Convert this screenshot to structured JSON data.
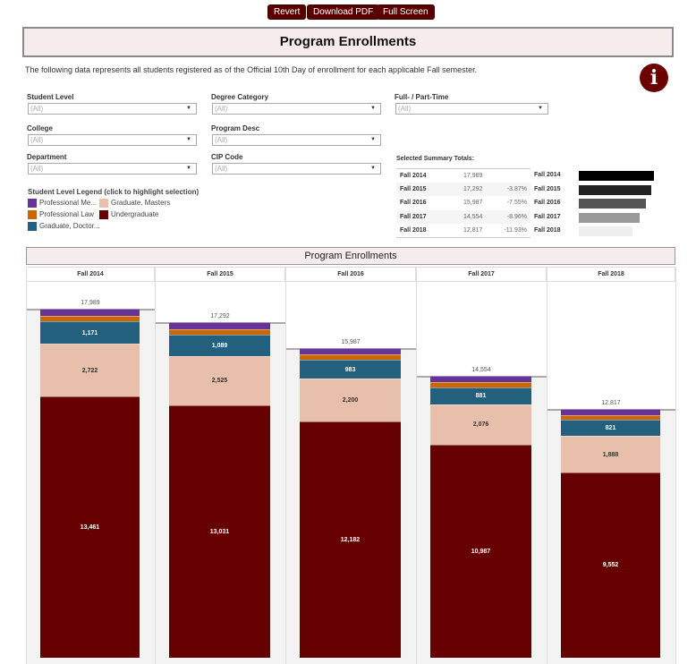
{
  "toolbar": {
    "revert": "Revert",
    "download": "Download PDF",
    "fullscreen": "Full Screen"
  },
  "title": "Program Enrollments",
  "description": "The following data represents all students registered as of the Official 10th Day of enrollment for each applicable Fall semester.",
  "info_icon": "i",
  "filters": [
    {
      "label": "Student Level",
      "value": "(All)"
    },
    {
      "label": "Degree Category",
      "value": "(All)"
    },
    {
      "label": "Full- / Part-Time",
      "value": "(All)"
    },
    {
      "label": "College",
      "value": "(All)"
    },
    {
      "label": "Program Desc",
      "value": "(All)"
    },
    {
      "label": "Department",
      "value": "(All)"
    },
    {
      "label": "CIP Code",
      "value": "(All)"
    }
  ],
  "legend": {
    "title": "Student Level Legend (click to highlight selection)",
    "items": [
      {
        "label": "Professional Me...",
        "color": "#663399"
      },
      {
        "label": "Graduate, Masters",
        "color": "#e8bfaa"
      },
      {
        "label": "Professional Law",
        "color": "#cc6600"
      },
      {
        "label": "Undergraduate",
        "color": "#660000"
      },
      {
        "label": "Graduate, Doctor...",
        "color": "#23607e"
      }
    ]
  },
  "summary": {
    "title": "Selected Summary Totals:",
    "rows": [
      {
        "term": "Fall 2014",
        "total": "17,989",
        "change": "",
        "bar_fraction": 1.0,
        "color": "#000000"
      },
      {
        "term": "Fall 2015",
        "total": "17,292",
        "change": "-3.87%",
        "bar_fraction": 0.961,
        "color": "#222222"
      },
      {
        "term": "Fall 2016",
        "total": "15,987",
        "change": "-7.55%",
        "bar_fraction": 0.889,
        "color": "#555555"
      },
      {
        "term": "Fall 2017",
        "total": "14,554",
        "change": "-8.96%",
        "bar_fraction": 0.809,
        "color": "#999999"
      },
      {
        "term": "Fall 2018",
        "total": "12,817",
        "change": "-11.93%",
        "bar_fraction": 0.713,
        "color": "#eeeeee"
      }
    ]
  },
  "chart_data": {
    "type": "bar",
    "stacked": true,
    "title": "Program Enrollments",
    "categories": [
      "Fall 2014",
      "Fall 2015",
      "Fall 2016",
      "Fall 2017",
      "Fall 2018"
    ],
    "totals": [
      17989,
      17292,
      15987,
      14554,
      12817
    ],
    "total_labels": [
      "17,989",
      "17,292",
      "15,987",
      "14,554",
      "12,817"
    ],
    "series": [
      {
        "name": "Undergraduate",
        "color": "#660000",
        "values": [
          13461,
          13031,
          12182,
          10987,
          9552
        ],
        "labels": [
          "13,461",
          "13,031",
          "12,182",
          "10,987",
          "9,552"
        ]
      },
      {
        "name": "Graduate, Masters",
        "color": "#e8bfaa",
        "values": [
          2722,
          2525,
          2200,
          2076,
          1888
        ],
        "labels": [
          "2,722",
          "2,525",
          "2,200",
          "2,076",
          "1,888"
        ]
      },
      {
        "name": "Graduate, Doctoral",
        "color": "#23607e",
        "values": [
          1171,
          1089,
          983,
          881,
          821
        ],
        "labels": [
          "1,171",
          "1,089",
          "983",
          "881",
          "821"
        ]
      },
      {
        "name": "Professional Law",
        "color": "#cc6600",
        "values": [
          270,
          290,
          280,
          275,
          250
        ],
        "labels": [
          "",
          "",
          "",
          "",
          ""
        ]
      },
      {
        "name": "Professional Medicine",
        "color": "#663399",
        "values": [
          365,
          357,
          342,
          335,
          306
        ],
        "labels": [
          "",
          "",
          "",
          "",
          ""
        ]
      }
    ]
  }
}
